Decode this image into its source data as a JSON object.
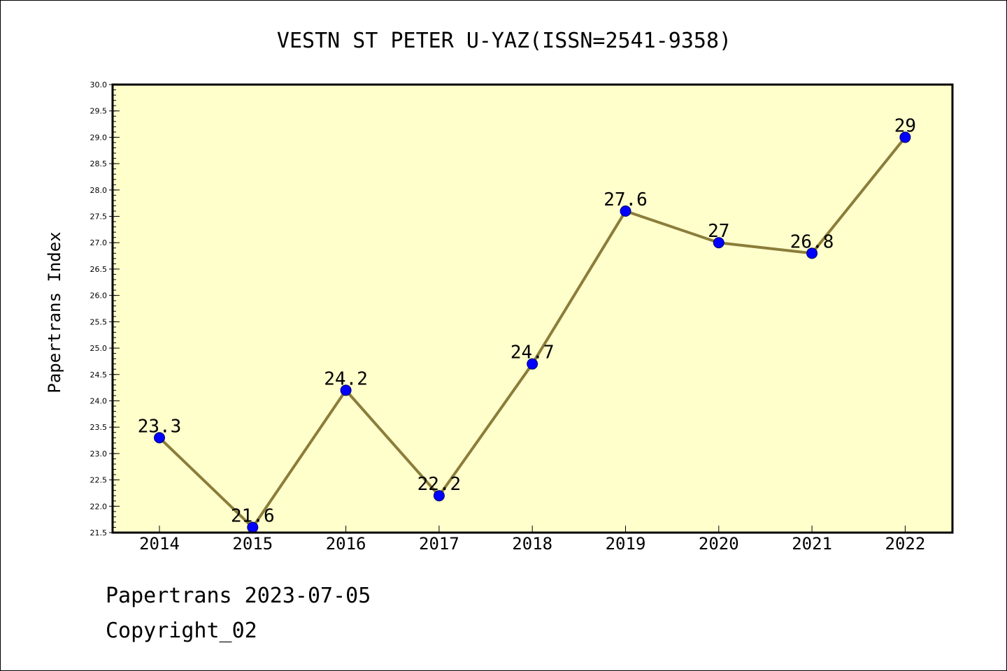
{
  "chart_data": {
    "type": "line",
    "title": "VESTN ST PETER U-YAZ(ISSN=2541-9358)",
    "xlabel": "",
    "ylabel": "Papertrans Index",
    "categories": [
      "2014",
      "2015",
      "2016",
      "2017",
      "2018",
      "2019",
      "2020",
      "2021",
      "2022"
    ],
    "values": [
      23.3,
      21.6,
      24.2,
      22.2,
      24.7,
      27.6,
      27.0,
      26.8,
      29.0
    ],
    "data_labels": [
      "23.3",
      "21.6",
      "24.2",
      "22.2",
      "24.7",
      "27.6",
      "27",
      "26.8",
      "29"
    ],
    "ylim": [
      21.5,
      30.0
    ],
    "yticks": [
      "21.5",
      "22.0",
      "22.5",
      "23.0",
      "23.5",
      "24.0",
      "24.5",
      "25.0",
      "25.5",
      "26.0",
      "26.5",
      "27.0",
      "27.5",
      "28.0",
      "28.5",
      "29.0",
      "29.5",
      "30.0"
    ],
    "grid": false,
    "colors": {
      "plot_background": "#ffffcc",
      "line": "#8b7d3a",
      "marker": "#0000ff"
    }
  },
  "footer": {
    "line1": "Papertrans 2023-07-05",
    "line2": "Copyright_02"
  }
}
